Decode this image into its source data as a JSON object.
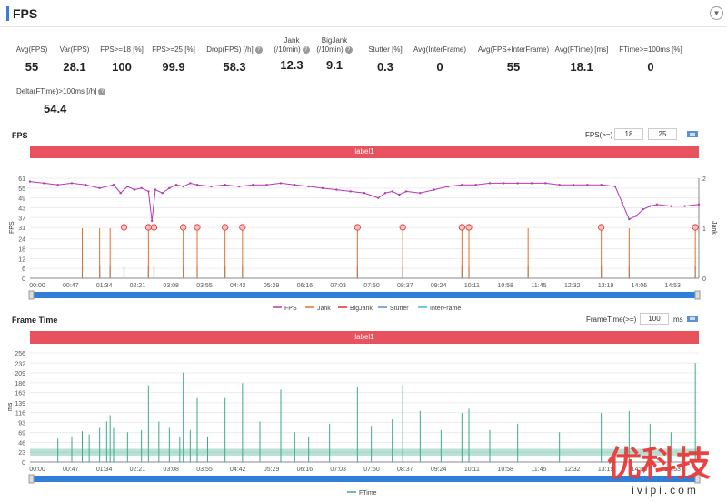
{
  "header": {
    "title": "FPS",
    "collapse_icon": "chevron-down-icon"
  },
  "metrics": [
    {
      "label": "Avg(FPS)",
      "value": "55"
    },
    {
      "label": "Var(FPS)",
      "value": "28.1"
    },
    {
      "label": "FPS>=18 [%]",
      "value": "100"
    },
    {
      "label": "FPS>=25 [%]",
      "value": "99.9"
    },
    {
      "label": "Drop(FPS) [/h]",
      "value": "58.3",
      "help": true
    },
    {
      "label": "Jank",
      "label2": "(/10min)",
      "value": "12.3",
      "help": true
    },
    {
      "label": "BigJank",
      "label2": "(/10min)",
      "value": "9.1",
      "help": true
    },
    {
      "label": "Stutter [%]",
      "value": "0.3"
    },
    {
      "label": "Avg(InterFrame)",
      "value": "0"
    },
    {
      "label": "Avg(FPS+InterFrame)",
      "value": "55"
    },
    {
      "label": "Avg(FTime) [ms]",
      "value": "18.1"
    },
    {
      "label": "FTime>=100ms [%]",
      "value": "0"
    },
    {
      "label": "Delta(FTime)>100ms [/h]",
      "value": "54.4",
      "help": true
    }
  ],
  "fps_section": {
    "title": "FPS",
    "threshold_label": "FPS(>=)",
    "threshold_1": "18",
    "threshold_2": "25",
    "label_bar": "label1"
  },
  "frametime_section": {
    "title": "Frame Time",
    "threshold_label": "FrameTime(>=)",
    "threshold_value": "100",
    "threshold_unit": "ms",
    "label_bar": "label1"
  },
  "chart_data": [
    {
      "type": "line",
      "title": "",
      "ylabel": "FPS",
      "y2label": "Jank",
      "ylim": [
        0,
        61
      ],
      "yticks": [
        0,
        6,
        12,
        18,
        24,
        31,
        37,
        43,
        49,
        55,
        61
      ],
      "y2lim": [
        0,
        2
      ],
      "y2ticks": [
        0,
        1,
        2
      ],
      "xticks": [
        "00:00",
        "00:47",
        "01:34",
        "02:21",
        "03:08",
        "03:55",
        "04:42",
        "05:29",
        "06:16",
        "07:03",
        "07:50",
        "08:37",
        "09:24",
        "10:11",
        "10:58",
        "11:45",
        "12:32",
        "13:19",
        "14:06",
        "14:53"
      ],
      "duration_s": 960,
      "legend": [
        "FPS",
        "Jank",
        "BigJank",
        "Stutter",
        "InterFrame"
      ],
      "legend_position": "bottom",
      "series": [
        {
          "name": "FPS",
          "color": "#b43ab4",
          "x": [
            0,
            20,
            40,
            60,
            80,
            100,
            120,
            130,
            140,
            150,
            160,
            170,
            175,
            180,
            190,
            200,
            210,
            220,
            230,
            240,
            260,
            280,
            300,
            320,
            340,
            360,
            380,
            400,
            420,
            440,
            460,
            480,
            500,
            510,
            520,
            530,
            540,
            560,
            580,
            600,
            620,
            640,
            660,
            680,
            700,
            720,
            740,
            760,
            780,
            800,
            820,
            840,
            850,
            860,
            870,
            880,
            890,
            900,
            920,
            940,
            960
          ],
          "y": [
            59,
            58,
            57,
            58,
            57,
            55,
            57,
            52,
            56,
            54,
            55,
            53,
            35,
            54,
            52,
            55,
            57,
            56,
            58,
            57,
            56,
            57,
            56,
            57,
            57,
            58,
            57,
            56,
            55,
            54,
            53,
            52,
            49,
            52,
            53,
            51,
            53,
            52,
            54,
            56,
            57,
            57,
            58,
            58,
            58,
            58,
            58,
            57,
            57,
            57,
            57,
            56,
            46,
            36,
            38,
            42,
            44,
            45,
            44,
            44,
            45
          ]
        },
        {
          "name": "Jank",
          "color": "#e0732b",
          "x": [
            75,
            100,
            115,
            135,
            170,
            178,
            220,
            240,
            280,
            305,
            470,
            535,
            620,
            630,
            715,
            820,
            860,
            955
          ],
          "y": [
            1,
            1,
            1,
            1,
            1,
            1,
            1,
            1,
            1,
            1,
            1,
            1,
            1,
            1,
            1,
            1,
            1,
            1
          ]
        },
        {
          "name": "BigJank",
          "color": "#e02b2b",
          "x": [
            135,
            170,
            178,
            220,
            240,
            280,
            305,
            470,
            535,
            620,
            630,
            820,
            955
          ],
          "y": [
            1,
            1,
            1,
            1,
            1,
            1,
            1,
            1,
            1,
            1,
            1,
            1,
            1
          ]
        },
        {
          "name": "Stutter",
          "color": "#5b8fd6",
          "x": [
            75,
            100,
            115,
            135,
            170,
            178,
            220,
            240,
            280,
            305,
            470,
            535,
            620,
            630,
            715,
            820,
            860,
            955
          ],
          "y": [
            0.5,
            0.5,
            0.5,
            0.5,
            0.5,
            0.5,
            0.5,
            0.5,
            0.5,
            0.5,
            0.5,
            0.5,
            0.5,
            0.5,
            0.5,
            0.5,
            0.5,
            0.5
          ]
        },
        {
          "name": "InterFrame",
          "color": "#38c0d0",
          "x": [],
          "y": []
        }
      ]
    },
    {
      "type": "bar",
      "title": "",
      "ylabel": "ms",
      "ylim": [
        0,
        256
      ],
      "yticks": [
        0,
        23,
        46,
        69,
        93,
        116,
        139,
        163,
        186,
        209,
        232,
        256
      ],
      "xticks": [
        "00:00",
        "00:47",
        "01:34",
        "02:21",
        "03:08",
        "03:55",
        "04:42",
        "05:29",
        "06:16",
        "07:03",
        "07:50",
        "08:37",
        "09:24",
        "10:11",
        "10:58",
        "11:45",
        "12:32",
        "13:19",
        "14:06",
        "14:53"
      ],
      "duration_s": 960,
      "legend": [
        "FTime"
      ],
      "legend_position": "bottom",
      "baseline": 23,
      "series": [
        {
          "name": "FTime",
          "color": "#3aaa8a",
          "x": [
            40,
            60,
            75,
            85,
            100,
            110,
            115,
            120,
            135,
            140,
            160,
            170,
            178,
            185,
            200,
            215,
            220,
            230,
            240,
            255,
            280,
            305,
            330,
            360,
            380,
            400,
            430,
            470,
            490,
            520,
            535,
            560,
            590,
            620,
            630,
            660,
            700,
            760,
            820,
            860,
            890,
            920,
            955
          ],
          "y": [
            55,
            60,
            72,
            65,
            80,
            95,
            110,
            80,
            140,
            70,
            75,
            180,
            210,
            95,
            80,
            60,
            210,
            75,
            150,
            60,
            150,
            185,
            95,
            170,
            70,
            60,
            90,
            175,
            85,
            100,
            180,
            120,
            75,
            115,
            125,
            75,
            90,
            70,
            115,
            120,
            90,
            70,
            232
          ]
        }
      ]
    }
  ],
  "watermark": {
    "text_cn": "优科技",
    "url": "ivipi.com"
  }
}
